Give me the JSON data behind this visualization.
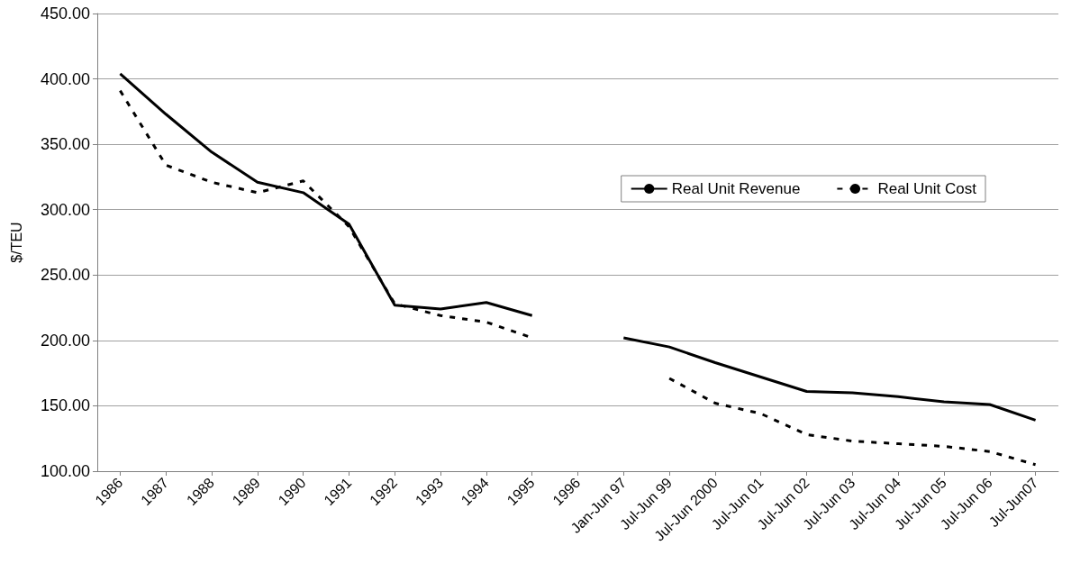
{
  "chart_data": {
    "type": "line",
    "ylabel": "$/TEU",
    "categories": [
      "1986",
      "1987",
      "1988",
      "1989",
      "1990",
      "1991",
      "1992",
      "1993",
      "1994",
      "1995",
      "1996",
      "Jan-Jun 97",
      "Jul-Jun 99",
      "Jul-Jun 2000",
      "Jul-Jun 01",
      "Jul-Jun 02",
      "Jul-Jun 03",
      "Jul-Jun 04",
      "Jul-Jun 05",
      "Jul-Jun 06",
      "Jul-Jun07"
    ],
    "series": [
      {
        "name": "Real Unit Revenue",
        "color": "#000000",
        "line_style": "solid",
        "values": [
          404,
          373,
          344,
          321,
          313,
          289,
          227,
          224,
          229,
          219,
          null,
          202,
          195,
          183,
          172,
          161,
          160,
          157,
          153,
          151,
          139
        ]
      },
      {
        "name": "Real Unit Cost",
        "color": "#000000",
        "line_style": "dashed",
        "values": [
          391,
          334,
          321,
          313,
          322,
          287,
          228,
          219,
          214,
          202,
          null,
          null,
          171,
          152,
          144,
          128,
          123,
          121,
          119,
          115,
          105
        ]
      }
    ],
    "ylim": [
      100,
      450
    ],
    "yticks": [
      {
        "value": 100,
        "label": "100.00"
      },
      {
        "value": 150,
        "label": "150.00"
      },
      {
        "value": 200,
        "label": "200.00"
      },
      {
        "value": 250,
        "label": "250.00"
      },
      {
        "value": 300,
        "label": "300.00"
      },
      {
        "value": 350,
        "label": "350.00"
      },
      {
        "value": 400,
        "label": "400.00"
      },
      {
        "value": 450,
        "label": "450.00"
      }
    ],
    "grid": "y",
    "legend": "top right",
    "marker": "none"
  }
}
